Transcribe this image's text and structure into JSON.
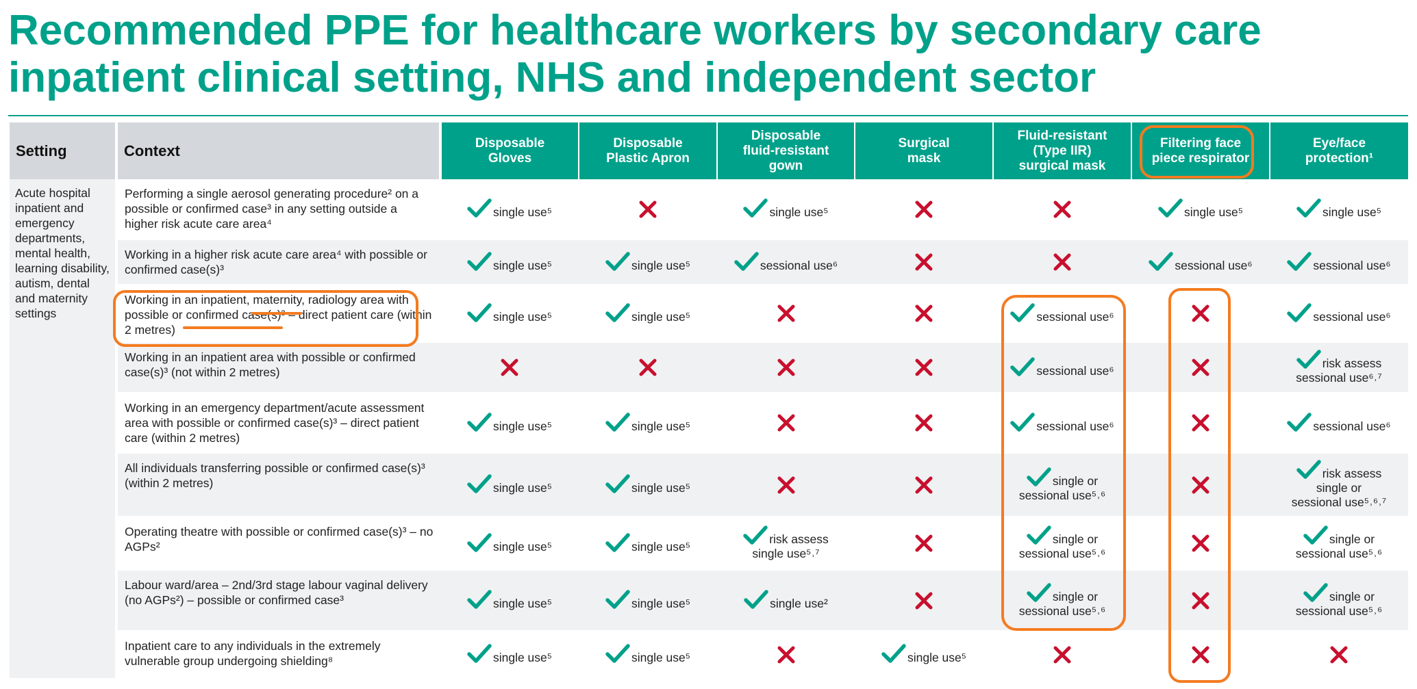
{
  "title": "Recommended PPE for healthcare workers by secondary care inpatient clinical setting, NHS and independent sector",
  "colors": {
    "accent": "#00a18a",
    "tick": "#00a18a",
    "cross": "#c8102e",
    "highlight": "#f47b20",
    "header_grey": "#d4d8dc"
  },
  "table": {
    "setting_header": "Setting",
    "context_header": "Context",
    "columns": [
      "Disposable\nGloves",
      "Disposable\nPlastic Apron",
      "Disposable\nfluid-resistant\ngown",
      "Surgical\nmask",
      "Fluid-resistant\n(Type IIR)\nsurgical mask",
      "Filtering face\npiece respirator",
      "Eye/face\nprotection¹"
    ],
    "setting": "Acute hospital inpatient and emergency departments, mental health, learning disability, autism, dental and maternity settings",
    "rows": [
      {
        "context": "Performing a single aerosol generating procedure² on a possible or confirmed case³ in any setting outside a higher risk acute care area⁴",
        "cells": [
          {
            "tick": true,
            "lines": [
              "single use⁵"
            ]
          },
          {
            "tick": false
          },
          {
            "tick": true,
            "lines": [
              "single use⁵"
            ]
          },
          {
            "tick": false
          },
          {
            "tick": false
          },
          {
            "tick": true,
            "lines": [
              "single use⁵"
            ]
          },
          {
            "tick": true,
            "lines": [
              "single use⁵"
            ]
          }
        ]
      },
      {
        "context": "Working in a higher risk acute care area⁴ with possible or confirmed case(s)³",
        "cells": [
          {
            "tick": true,
            "lines": [
              "single use⁵"
            ]
          },
          {
            "tick": true,
            "lines": [
              "single use⁵"
            ]
          },
          {
            "tick": true,
            "lines": [
              "sessional use⁶"
            ]
          },
          {
            "tick": false
          },
          {
            "tick": false
          },
          {
            "tick": true,
            "lines": [
              "sessional use⁶"
            ]
          },
          {
            "tick": true,
            "lines": [
              "sessional use⁶"
            ]
          }
        ]
      },
      {
        "context": "Working in an inpatient, maternity, radiology area with possible or confirmed case(s)³ – direct patient care (within 2 metres)",
        "cells": [
          {
            "tick": true,
            "lines": [
              "single use⁵"
            ]
          },
          {
            "tick": true,
            "lines": [
              "single use⁵"
            ]
          },
          {
            "tick": false
          },
          {
            "tick": false
          },
          {
            "tick": true,
            "lines": [
              "sessional use⁶"
            ]
          },
          {
            "tick": false
          },
          {
            "tick": true,
            "lines": [
              "sessional use⁶"
            ]
          }
        ]
      },
      {
        "context": "Working in an inpatient area with possible or confirmed case(s)³ (not within 2 metres)",
        "cells": [
          {
            "tick": false
          },
          {
            "tick": false
          },
          {
            "tick": false
          },
          {
            "tick": false
          },
          {
            "tick": true,
            "lines": [
              "sessional use⁶"
            ]
          },
          {
            "tick": false
          },
          {
            "tick": true,
            "stacked": true,
            "lines": [
              "risk assess",
              "sessional use⁶˒⁷"
            ]
          }
        ]
      },
      {
        "context": "Working in an emergency department/acute assessment area with possible or confirmed case(s)³ – direct patient care (within 2 metres)",
        "cells": [
          {
            "tick": true,
            "lines": [
              "single use⁵"
            ]
          },
          {
            "tick": true,
            "lines": [
              "single use⁵"
            ]
          },
          {
            "tick": false
          },
          {
            "tick": false
          },
          {
            "tick": true,
            "lines": [
              "sessional use⁶"
            ]
          },
          {
            "tick": false
          },
          {
            "tick": true,
            "lines": [
              "sessional use⁶"
            ]
          }
        ]
      },
      {
        "context": "All individuals transferring possible or confirmed case(s)³ (within 2 metres)",
        "cells": [
          {
            "tick": true,
            "lines": [
              "single use⁵"
            ]
          },
          {
            "tick": true,
            "lines": [
              "single use⁵"
            ]
          },
          {
            "tick": false
          },
          {
            "tick": false
          },
          {
            "tick": true,
            "stacked": true,
            "lines": [
              "single or",
              "sessional use⁵˒⁶"
            ]
          },
          {
            "tick": false
          },
          {
            "tick": true,
            "stacked": true,
            "lines": [
              "risk assess",
              "single or",
              "sessional use⁵˒⁶˒⁷"
            ]
          }
        ]
      },
      {
        "context": "Operating theatre with possible or confirmed case(s)³ – no AGPs²",
        "cells": [
          {
            "tick": true,
            "lines": [
              "single use⁵"
            ]
          },
          {
            "tick": true,
            "lines": [
              "single use⁵"
            ]
          },
          {
            "tick": true,
            "stacked": true,
            "lines": [
              "risk assess",
              "single use⁵˒⁷"
            ]
          },
          {
            "tick": false
          },
          {
            "tick": true,
            "stacked": true,
            "lines": [
              "single or",
              "sessional use⁵˒⁶"
            ]
          },
          {
            "tick": false
          },
          {
            "tick": true,
            "stacked": true,
            "lines": [
              "single or",
              "sessional use⁵˒⁶"
            ]
          }
        ]
      },
      {
        "context": "Labour ward/area – 2nd/3rd stage labour vaginal delivery (no AGPs²) – possible or confirmed case³",
        "cells": [
          {
            "tick": true,
            "lines": [
              "single use⁵"
            ]
          },
          {
            "tick": true,
            "lines": [
              "single use⁵"
            ]
          },
          {
            "tick": true,
            "lines": [
              "single use²"
            ]
          },
          {
            "tick": false
          },
          {
            "tick": true,
            "stacked": true,
            "lines": [
              "single or",
              "sessional use⁵˒⁶"
            ]
          },
          {
            "tick": false
          },
          {
            "tick": true,
            "stacked": true,
            "lines": [
              "single or",
              "sessional use⁵˒⁶"
            ]
          }
        ]
      },
      {
        "context": "Inpatient care to any individuals in the extremely vulnerable group undergoing shielding⁸",
        "cells": [
          {
            "tick": true,
            "lines": [
              "single use⁵"
            ]
          },
          {
            "tick": true,
            "lines": [
              "single use⁵"
            ]
          },
          {
            "tick": false
          },
          {
            "tick": true,
            "lines": [
              "single use⁵"
            ]
          },
          {
            "tick": false
          },
          {
            "tick": false
          },
          {
            "tick": false
          }
        ]
      }
    ]
  }
}
